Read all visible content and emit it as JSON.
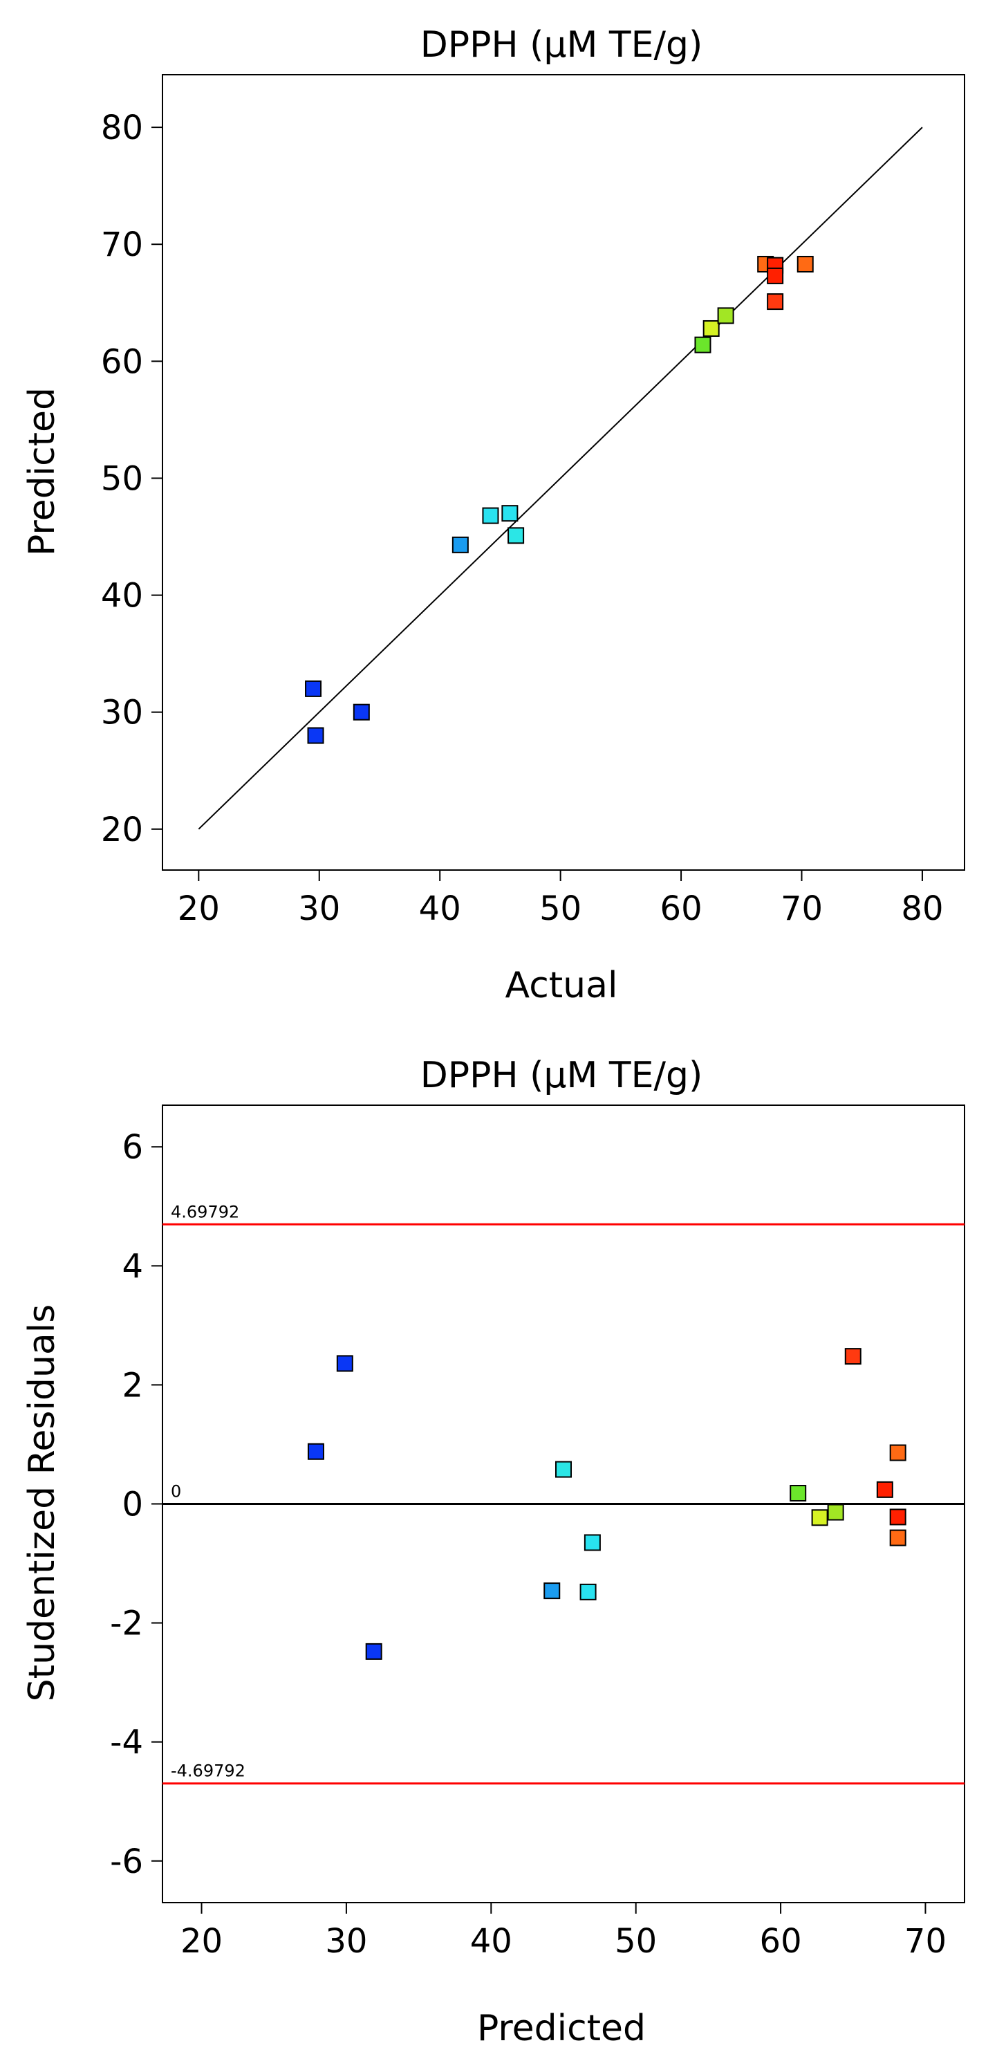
{
  "chart_data": [
    {
      "type": "scatter",
      "title": "DPPH (µM TE/g)",
      "xlabel": "Actual",
      "ylabel": "Predicted",
      "xlim": [
        17,
        83.5
      ],
      "ylim": [
        16.5,
        84.5
      ],
      "xticks": [
        20,
        30,
        40,
        50,
        60,
        70,
        80
      ],
      "yticks": [
        20,
        30,
        40,
        50,
        60,
        70,
        80
      ],
      "xtick_labels": [
        "20",
        "30",
        "40",
        "50",
        "60",
        "70",
        "80"
      ],
      "ytick_labels": [
        "20",
        "30",
        "40",
        "50",
        "60",
        "70",
        "80"
      ],
      "reference_line": {
        "from": [
          20,
          20
        ],
        "to": [
          80,
          80
        ]
      },
      "points": [
        {
          "x": 29.5,
          "y": 32.0,
          "color": "#0a37f5"
        },
        {
          "x": 29.7,
          "y": 28.0,
          "color": "#0a37f5"
        },
        {
          "x": 33.5,
          "y": 30.0,
          "color": "#0a37f5"
        },
        {
          "x": 41.7,
          "y": 44.3,
          "color": "#1a9cf0"
        },
        {
          "x": 44.2,
          "y": 46.8,
          "color": "#29e2f0"
        },
        {
          "x": 45.8,
          "y": 47.0,
          "color": "#29e2f0"
        },
        {
          "x": 46.3,
          "y": 45.1,
          "color": "#2be6e6"
        },
        {
          "x": 61.8,
          "y": 61.4,
          "color": "#6be62b"
        },
        {
          "x": 62.5,
          "y": 62.8,
          "color": "#d6f224"
        },
        {
          "x": 63.7,
          "y": 63.9,
          "color": "#a2e624"
        },
        {
          "x": 67.0,
          "y": 68.3,
          "color": "#ff6a14"
        },
        {
          "x": 67.8,
          "y": 68.2,
          "color": "#ff2000"
        },
        {
          "x": 67.8,
          "y": 67.3,
          "color": "#ff2000"
        },
        {
          "x": 67.8,
          "y": 65.1,
          "color": "#ff3a10"
        },
        {
          "x": 70.3,
          "y": 68.3,
          "color": "#ff6a14"
        }
      ]
    },
    {
      "type": "scatter",
      "title": "DPPH (µM TE/g)",
      "xlabel": "Predicted",
      "ylabel": "Studentized Residuals",
      "xlim": [
        17.3,
        72.7
      ],
      "ylim": [
        -6.7,
        6.7
      ],
      "xticks": [
        20,
        30,
        40,
        50,
        60,
        70
      ],
      "yticks": [
        -6,
        -4,
        -2,
        0,
        2,
        4,
        6
      ],
      "xtick_labels": [
        "20",
        "30",
        "40",
        "50",
        "60",
        "70"
      ],
      "ytick_labels": [
        "-6",
        "-4",
        "-2",
        "0",
        "2",
        "4",
        "6"
      ],
      "hlines": [
        {
          "y": 4.69792,
          "label": "4.69792",
          "color": "#ff0000"
        },
        {
          "y": 0,
          "label": "0",
          "color": "#000000"
        },
        {
          "y": -4.69792,
          "label": "-4.69792",
          "color": "#ff0000"
        }
      ],
      "points": [
        {
          "x": 27.9,
          "y": 0.88,
          "color": "#0a37f5"
        },
        {
          "x": 29.9,
          "y": 2.36,
          "color": "#0a37f5"
        },
        {
          "x": 31.9,
          "y": -2.48,
          "color": "#0a37f5"
        },
        {
          "x": 44.2,
          "y": -1.46,
          "color": "#1a9cf0"
        },
        {
          "x": 45.0,
          "y": 0.58,
          "color": "#2be6e6"
        },
        {
          "x": 46.7,
          "y": -1.48,
          "color": "#29e2f0"
        },
        {
          "x": 47.0,
          "y": -0.65,
          "color": "#29e2f0"
        },
        {
          "x": 61.2,
          "y": 0.18,
          "color": "#6be62b"
        },
        {
          "x": 62.7,
          "y": -0.23,
          "color": "#d6f224"
        },
        {
          "x": 63.8,
          "y": -0.14,
          "color": "#a2e624"
        },
        {
          "x": 65.0,
          "y": 2.48,
          "color": "#ff3a10"
        },
        {
          "x": 67.2,
          "y": 0.24,
          "color": "#ff2000"
        },
        {
          "x": 68.1,
          "y": 0.86,
          "color": "#ff6a14"
        },
        {
          "x": 68.1,
          "y": -0.22,
          "color": "#ff2000"
        },
        {
          "x": 68.1,
          "y": -0.57,
          "color": "#ff6a14"
        }
      ]
    }
  ]
}
